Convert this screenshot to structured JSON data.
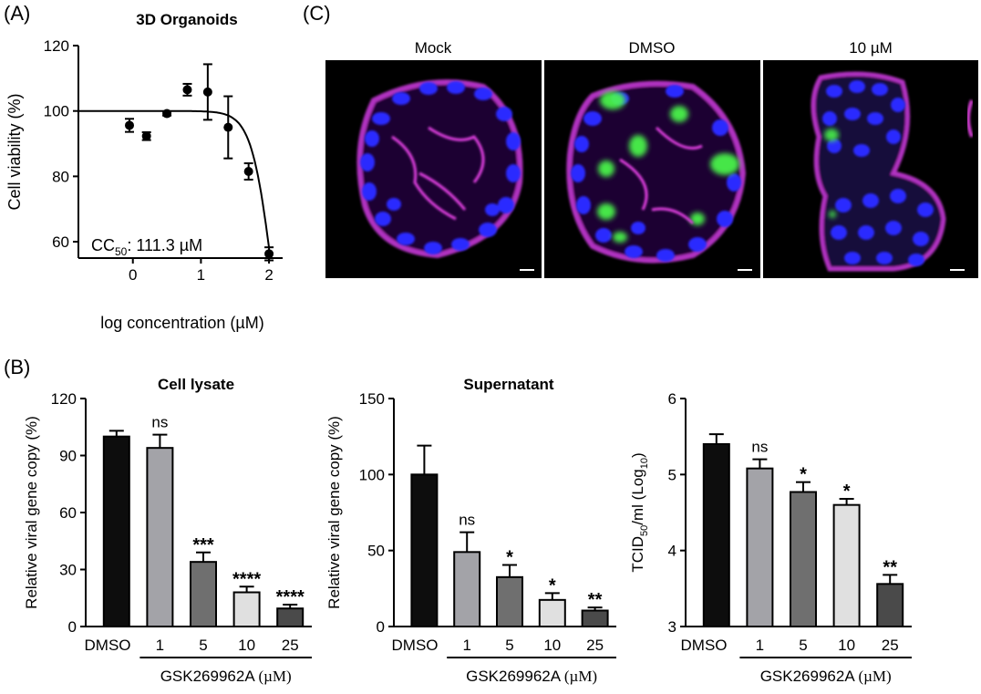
{
  "panels": {
    "a": {
      "letter": "(A)"
    },
    "b": {
      "letter": "(B)"
    },
    "c": {
      "letter": "(C)"
    }
  },
  "chart_data": [
    {
      "id": "organoids",
      "type": "scatter",
      "title": "3D Organoids",
      "xlabel": "log concentration (µM)",
      "ylabel": "Cell viability (%)",
      "xticks": [
        0,
        1,
        2
      ],
      "yticks": [
        60,
        80,
        100,
        120
      ],
      "xlim": [
        -0.8,
        2.2
      ],
      "ylim": [
        55,
        120
      ],
      "annotation": {
        "base": "CC",
        "sub": "50",
        "rest": ": 111.3 µM"
      },
      "points": [
        {
          "x": -0.05,
          "y": 95.6,
          "err": 2.0
        },
        {
          "x": 0.2,
          "y": 92.3,
          "err": 1.2
        },
        {
          "x": 0.5,
          "y": 99.2,
          "err": 0.6
        },
        {
          "x": 0.8,
          "y": 106.5,
          "err": 1.8
        },
        {
          "x": 1.1,
          "y": 105.8,
          "err": 8.5
        },
        {
          "x": 1.4,
          "y": 95.0,
          "err": 9.5
        },
        {
          "x": 1.7,
          "y": 81.5,
          "err": 2.5
        },
        {
          "x": 2.0,
          "y": 56.3,
          "err": 2.0
        }
      ],
      "fit": {
        "top": 100,
        "ic50_log": 2.05,
        "hill": 1.5
      },
      "grid": false
    },
    {
      "id": "cell-lysate",
      "type": "bar",
      "title": "Cell lysate",
      "ylabel": "Relative viral gene copy (%)",
      "categories": [
        "DMSO",
        "1",
        "5",
        "10",
        "25"
      ],
      "values": [
        100,
        94,
        34,
        18,
        9.5
      ],
      "errors": [
        3,
        7,
        5,
        3,
        2
      ],
      "significance": [
        "",
        "ns",
        "***",
        "****",
        "****"
      ],
      "yticks": [
        0,
        30,
        60,
        90,
        120
      ],
      "ylim": [
        0,
        120
      ],
      "group_label": "GSK269962A (µM)",
      "bar_colors": [
        "#0d0d0d",
        "#a3a3a8",
        "#6f6f6f",
        "#e0e0e0",
        "#4a4a4a"
      ]
    },
    {
      "id": "supernatant",
      "type": "bar",
      "title": "Supernatant",
      "ylabel": "Relative viral gene copy (%)",
      "categories": [
        "DMSO",
        "1",
        "5",
        "10",
        "25"
      ],
      "values": [
        100,
        49,
        32.5,
        17.5,
        10.5
      ],
      "errors": [
        19,
        13,
        8,
        4.5,
        2
      ],
      "significance": [
        "",
        "ns",
        "*",
        "*",
        "**"
      ],
      "yticks": [
        0,
        50,
        100,
        150
      ],
      "ylim": [
        0,
        150
      ],
      "group_label": "GSK269962A (µM)",
      "bar_colors": [
        "#0d0d0d",
        "#a3a3a8",
        "#6f6f6f",
        "#e0e0e0",
        "#4a4a4a"
      ]
    },
    {
      "id": "tcid50",
      "type": "bar",
      "ylabel": {
        "base": "TCID",
        "sub1": "50",
        "mid": "/ml (Log",
        "sub2": "10",
        "end": ")"
      },
      "categories": [
        "DMSO",
        "1",
        "5",
        "10",
        "25"
      ],
      "values": [
        5.4,
        5.08,
        4.77,
        4.6,
        3.56
      ],
      "errors": [
        0.13,
        0.12,
        0.13,
        0.08,
        0.12
      ],
      "significance": [
        "",
        "ns",
        "*",
        "*",
        "**"
      ],
      "yticks": [
        3,
        4,
        5,
        6
      ],
      "ylim": [
        3,
        6
      ],
      "group_label": "GSK269962A (µM)",
      "bar_colors": [
        "#0d0d0d",
        "#a3a3a8",
        "#6f6f6f",
        "#e0e0e0",
        "#4a4a4a"
      ]
    }
  ],
  "micrographs": [
    {
      "label": "Mock",
      "icon": "organoid-mock-image"
    },
    {
      "label": "DMSO",
      "icon": "organoid-dmso-image"
    },
    {
      "label": "10 µM",
      "icon": "organoid-10um-image"
    }
  ],
  "colors": {
    "dapi": "#2a2aff",
    "membrane": "#d23cd2",
    "virus": "#4cff4c",
    "background": "#000000"
  }
}
